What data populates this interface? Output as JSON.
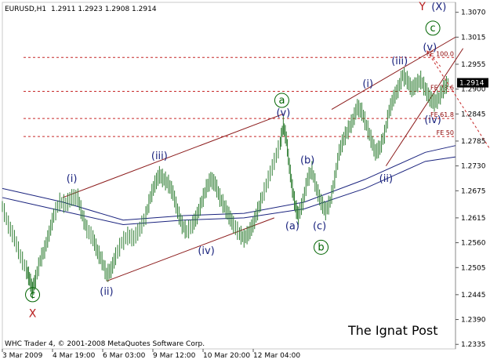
{
  "header": {
    "symbol": "EURUSD,H1",
    "ohlc": "1.2911 1.2923 1.2908 1.2914"
  },
  "footer": "WHC Trader 4, © 2001-2008 MetaQuotes Software Corp.",
  "watermark": "The Ignat Post",
  "colors": {
    "background": "#ffffff",
    "frame": "#c8c8c8",
    "price": "#2e7d32",
    "ma": "#1a237e",
    "channel": "#8b1a1a",
    "fe_line": "#c62828",
    "wave_label": "#1a237e",
    "circle_label": "#006400",
    "xy_label": "#b71c1c"
  },
  "chart_data": {
    "type": "line",
    "title": "EURUSD,H1",
    "xlabel": "",
    "ylabel": "",
    "ylim": [
      1.2325,
      1.3092
    ],
    "y_ticks": [
      1.307,
      1.3015,
      1.2955,
      1.29,
      1.2845,
      1.2785,
      1.273,
      1.2675,
      1.2615,
      1.256,
      1.2505,
      1.2445,
      1.239,
      1.2335
    ],
    "x_ticks": [
      "3 Mar 2009",
      "4 Mar 19:00",
      "6 Mar 03:00",
      "9 Mar 12:00",
      "10 Mar 20:00",
      "12 Mar 04:00"
    ],
    "last_price": "1.2914",
    "price_series": [
      [
        0,
        1.264
      ],
      [
        4,
        1.26
      ],
      [
        8,
        1.257
      ],
      [
        12,
        1.253
      ],
      [
        16,
        1.25
      ],
      [
        18,
        1.248
      ],
      [
        20,
        1.2455
      ],
      [
        22,
        1.248
      ],
      [
        25,
        1.252
      ],
      [
        28,
        1.2545
      ],
      [
        31,
        1.258
      ],
      [
        34,
        1.262
      ],
      [
        38,
        1.265
      ],
      [
        42,
        1.2645
      ],
      [
        46,
        1.266
      ],
      [
        50,
        1.266
      ],
      [
        53,
        1.262
      ],
      [
        56,
        1.259
      ],
      [
        60,
        1.257
      ],
      [
        63,
        1.254
      ],
      [
        66,
        1.252
      ],
      [
        69,
        1.249
      ],
      [
        72,
        1.25
      ],
      [
        75,
        1.253
      ],
      [
        79,
        1.256
      ],
      [
        83,
        1.2575
      ],
      [
        87,
        1.257
      ],
      [
        91,
        1.259
      ],
      [
        95,
        1.262
      ],
      [
        98,
        1.266
      ],
      [
        101,
        1.269
      ],
      [
        104,
        1.271
      ],
      [
        107,
        1.27
      ],
      [
        110,
        1.269
      ],
      [
        113,
        1.267
      ],
      [
        116,
        1.263
      ],
      [
        119,
        1.26
      ],
      [
        122,
        1.2585
      ],
      [
        126,
        1.26
      ],
      [
        129,
        1.262
      ],
      [
        132,
        1.265
      ],
      [
        135,
        1.268
      ],
      [
        138,
        1.27
      ],
      [
        141,
        1.269
      ],
      [
        144,
        1.266
      ],
      [
        147,
        1.264
      ],
      [
        150,
        1.262
      ],
      [
        153,
        1.26
      ],
      [
        157,
        1.258
      ],
      [
        160,
        1.257
      ],
      [
        163,
        1.258
      ],
      [
        166,
        1.26
      ],
      [
        169,
        1.263
      ],
      [
        172,
        1.266
      ],
      [
        176,
        1.27
      ],
      [
        180,
        1.274
      ],
      [
        184,
        1.278
      ],
      [
        186,
        1.282
      ],
      [
        188,
        1.279
      ],
      [
        190,
        1.273
      ],
      [
        192,
        1.268
      ],
      [
        194,
        1.264
      ],
      [
        196,
        1.262
      ],
      [
        199,
        1.265
      ],
      [
        202,
        1.27
      ],
      [
        205,
        1.272
      ],
      [
        208,
        1.268
      ],
      [
        211,
        1.265
      ],
      [
        214,
        1.263
      ],
      [
        217,
        1.265
      ],
      [
        220,
        1.27
      ],
      [
        223,
        1.276
      ],
      [
        226,
        1.279
      ],
      [
        229,
        1.281
      ],
      [
        232,
        1.283
      ],
      [
        235,
        1.286
      ],
      [
        238,
        1.285
      ],
      [
        241,
        1.282
      ],
      [
        244,
        1.279
      ],
      [
        247,
        1.276
      ],
      [
        250,
        1.277
      ],
      [
        253,
        1.28
      ],
      [
        256,
        1.285
      ],
      [
        259,
        1.288
      ],
      [
        262,
        1.29
      ],
      [
        265,
        1.293
      ],
      [
        268,
        1.292
      ],
      [
        271,
        1.29
      ],
      [
        274,
        1.291
      ],
      [
        277,
        1.292
      ],
      [
        280,
        1.29
      ],
      [
        283,
        1.288
      ],
      [
        286,
        1.287
      ],
      [
        289,
        1.288
      ],
      [
        292,
        1.29
      ],
      [
        295,
        1.2914
      ]
    ],
    "ma_series": [
      {
        "name": "",
        "values": [
          [
            0,
            1.268
          ],
          [
            40,
            1.265
          ],
          [
            80,
            1.261
          ],
          [
            120,
            1.262
          ],
          [
            160,
            1.2625
          ],
          [
            200,
            1.265
          ],
          [
            240,
            1.27
          ],
          [
            280,
            1.276
          ],
          [
            300,
            1.2775
          ]
        ]
      },
      {
        "name": "",
        "values": [
          [
            0,
            1.266
          ],
          [
            40,
            1.263
          ],
          [
            80,
            1.26
          ],
          [
            120,
            1.261
          ],
          [
            160,
            1.2615
          ],
          [
            200,
            1.2635
          ],
          [
            240,
            1.268
          ],
          [
            280,
            1.274
          ],
          [
            300,
            1.275
          ]
        ]
      }
    ],
    "fe_levels": [
      {
        "label": "FE 100.0",
        "value": 1.297
      },
      {
        "label": "FE 78.6",
        "value": 1.2895
      },
      {
        "label": "FE 61.8",
        "value": 1.2835
      },
      {
        "label": "FE 50",
        "value": 1.2795
      }
    ],
    "wave_labels": [
      {
        "text": "(i)",
        "x": 46,
        "y": 1.2695,
        "kind": "minor"
      },
      {
        "text": "(ii)",
        "x": 69,
        "y": 1.2445,
        "kind": "minor"
      },
      {
        "text": "(iii)",
        "x": 104,
        "y": 1.2745,
        "kind": "minor"
      },
      {
        "text": "(iv)",
        "x": 135,
        "y": 1.2535,
        "kind": "minor"
      },
      {
        "text": "(v)",
        "x": 186,
        "y": 1.284,
        "kind": "minor"
      },
      {
        "text": "(b)",
        "x": 202,
        "y": 1.2735,
        "kind": "minor"
      },
      {
        "text": "(a)",
        "x": 192,
        "y": 1.259,
        "kind": "minor"
      },
      {
        "text": "(c)",
        "x": 210,
        "y": 1.259,
        "kind": "minor"
      },
      {
        "text": "(i)",
        "x": 242,
        "y": 1.2905,
        "kind": "minor"
      },
      {
        "text": "(ii)",
        "x": 254,
        "y": 1.2695,
        "kind": "minor"
      },
      {
        "text": "(iii)",
        "x": 263,
        "y": 1.2955,
        "kind": "minor"
      },
      {
        "text": "(iv)",
        "x": 285,
        "y": 1.2825,
        "kind": "minor"
      },
      {
        "text": "(v)",
        "x": 283,
        "y": 1.2985,
        "kind": "minor"
      }
    ],
    "circle_labels": [
      {
        "text": "c",
        "x": 20,
        "y": 1.2445
      },
      {
        "text": "a",
        "x": 185,
        "y": 1.2875
      },
      {
        "text": "b",
        "x": 211,
        "y": 1.255
      },
      {
        "text": "c",
        "x": 285,
        "y": 1.3035
      }
    ],
    "xy_labels": [
      {
        "text": "X",
        "x": 20,
        "y": 1.2395,
        "style": "red"
      },
      {
        "text": "Y",
        "x": 278,
        "y": 1.3075,
        "style": "red"
      },
      {
        "text": "(X)",
        "x": 289,
        "y": 1.3075,
        "style": "blue"
      }
    ],
    "channels": [
      {
        "x1": 40,
        "y1": 1.266,
        "x2": 186,
        "y2": 1.2845
      },
      {
        "x1": 69,
        "y1": 1.2475,
        "x2": 180,
        "y2": 1.2615
      },
      {
        "x1": 218,
        "y1": 1.2855,
        "x2": 300,
        "y2": 1.3015
      },
      {
        "x1": 254,
        "y1": 1.273,
        "x2": 305,
        "y2": 1.299
      }
    ],
    "projection": [
      {
        "x1": 281,
        "y1": 1.2985,
        "x2": 329,
        "y2": 1.2735
      },
      {
        "x1": 281,
        "y1": 1.2985,
        "x2": 290,
        "y2": 1.295
      }
    ]
  }
}
